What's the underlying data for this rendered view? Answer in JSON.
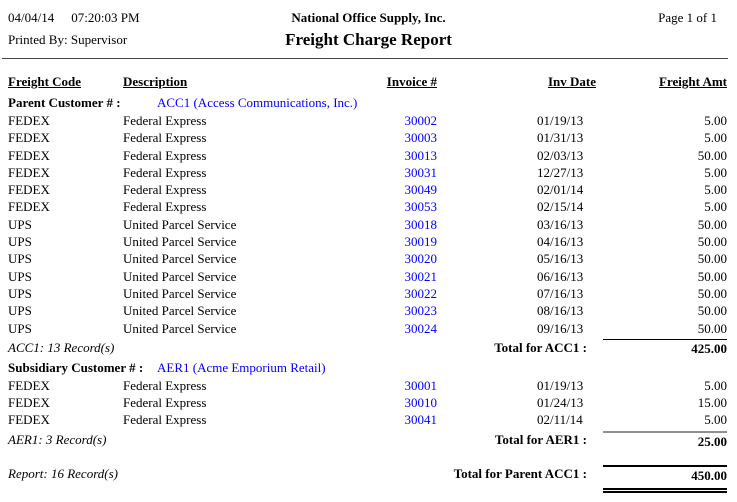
{
  "report": {
    "date": "04/04/14",
    "time": "07:20:03 PM",
    "printed_by_label": "Printed By:",
    "printed_by": "Supervisor",
    "company": "National Office Supply, Inc.",
    "title": "Freight Charge Report",
    "page": "Page 1 of 1"
  },
  "columns": [
    "Freight Code",
    "Description",
    "Invoice #",
    "Inv Date",
    "Freight Amt"
  ],
  "colors": {
    "link": "#0000FF"
  },
  "groups": [
    {
      "label": "Parent Customer # :",
      "link": "ACC1 (Access Communications, Inc.)",
      "rows": [
        {
          "code": "FEDEX",
          "desc": "Federal Express",
          "invoice": "30002",
          "date": "01/19/13",
          "amt": "5.00"
        },
        {
          "code": "FEDEX",
          "desc": "Federal Express",
          "invoice": "30003",
          "date": "01/31/13",
          "amt": "5.00"
        },
        {
          "code": "FEDEX",
          "desc": "Federal Express",
          "invoice": "30013",
          "date": "02/03/13",
          "amt": "50.00"
        },
        {
          "code": "FEDEX",
          "desc": "Federal Express",
          "invoice": "30031",
          "date": "12/27/13",
          "amt": "5.00"
        },
        {
          "code": "FEDEX",
          "desc": "Federal Express",
          "invoice": "30049",
          "date": "02/01/14",
          "amt": "5.00"
        },
        {
          "code": "FEDEX",
          "desc": "Federal Express",
          "invoice": "30053",
          "date": "02/15/14",
          "amt": "5.00"
        },
        {
          "code": "UPS",
          "desc": "United Parcel Service",
          "invoice": "30018",
          "date": "03/16/13",
          "amt": "50.00"
        },
        {
          "code": "UPS",
          "desc": "United Parcel Service",
          "invoice": "30019",
          "date": "04/16/13",
          "amt": "50.00"
        },
        {
          "code": "UPS",
          "desc": "United Parcel Service",
          "invoice": "30020",
          "date": "05/16/13",
          "amt": "50.00"
        },
        {
          "code": "UPS",
          "desc": "United Parcel Service",
          "invoice": "30021",
          "date": "06/16/13",
          "amt": "50.00"
        },
        {
          "code": "UPS",
          "desc": "United Parcel Service",
          "invoice": "30022",
          "date": "07/16/13",
          "amt": "50.00"
        },
        {
          "code": "UPS",
          "desc": "United Parcel Service",
          "invoice": "30023",
          "date": "08/16/13",
          "amt": "50.00"
        },
        {
          "code": "UPS",
          "desc": "United Parcel Service",
          "invoice": "30024",
          "date": "09/16/13",
          "amt": "50.00"
        }
      ],
      "summary_left": "ACC1: 13 Record(s)",
      "total_label": "Total for ACC1 :",
      "total": "425.00"
    },
    {
      "label": "Subsidiary Customer # :",
      "link": "AER1 (Acme Emporium Retail)",
      "rows": [
        {
          "code": "FEDEX",
          "desc": "Federal Express",
          "invoice": "30001",
          "date": "01/19/13",
          "amt": "5.00"
        },
        {
          "code": "FEDEX",
          "desc": "Federal Express",
          "invoice": "30010",
          "date": "01/24/13",
          "amt": "15.00"
        },
        {
          "code": "FEDEX",
          "desc": "Federal Express",
          "invoice": "30041",
          "date": "02/11/14",
          "amt": "5.00"
        }
      ],
      "summary_left": "AER1: 3 Record(s)",
      "total_label": "Total for AER1 :",
      "total": "25.00"
    }
  ],
  "grand_total": {
    "summary_left": "Report: 16 Record(s)",
    "label": "Total for Parent ACC1 :",
    "total": "450.00"
  }
}
